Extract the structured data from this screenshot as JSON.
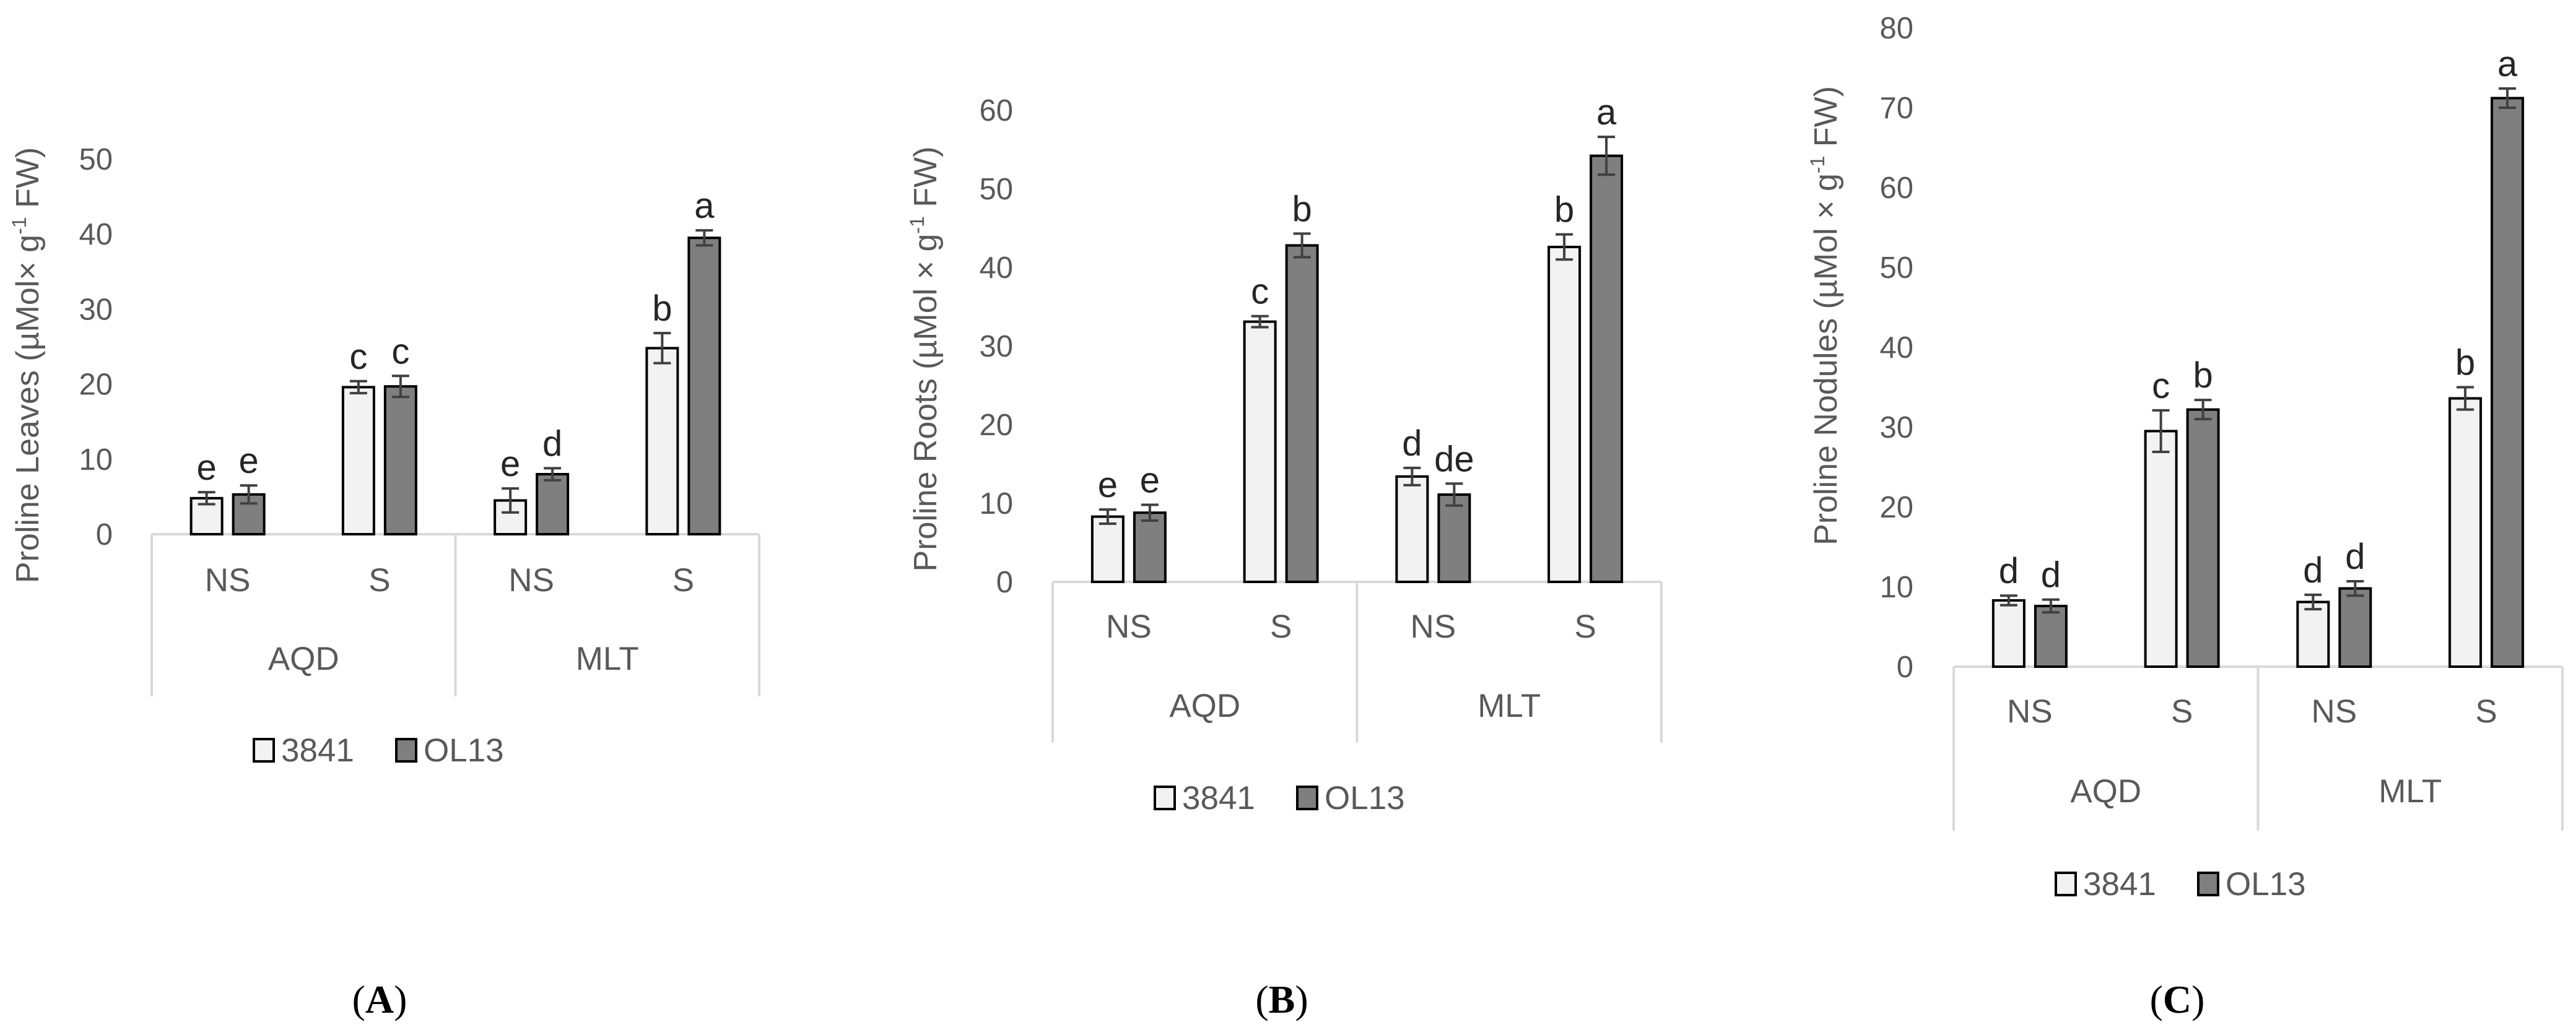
{
  "chart_data": [
    {
      "type": "bar",
      "panel_label": "A",
      "ylabel": {
        "prefix": "Proline  Leaves (µMol× g",
        "sup": "-1",
        "suffix": " FW)"
      },
      "yticks": [
        "0",
        "10",
        "20",
        "30",
        "40",
        "50"
      ],
      "ylim": [
        0,
        50
      ],
      "groups": [
        "AQD",
        "MLT"
      ],
      "categories": [
        "NS",
        "S",
        "NS",
        "S"
      ],
      "series": [
        {
          "name": "3841",
          "values": [
            4.8,
            19.6,
            4.5,
            24.8
          ],
          "errors": [
            0.8,
            0.8,
            1.6,
            2.0
          ],
          "letters": [
            "e",
            "c",
            "e",
            "b"
          ]
        },
        {
          "name": "OL13",
          "values": [
            5.3,
            19.7,
            8.0,
            39.5
          ],
          "errors": [
            1.2,
            1.4,
            0.8,
            1.0
          ],
          "letters": [
            "e",
            "c",
            "d",
            "a"
          ]
        }
      ],
      "legend_position": "bottom",
      "colors": {
        "3841": "#f2f2f2",
        "OL13": "#7f7f7f"
      }
    },
    {
      "type": "bar",
      "panel_label": "B",
      "ylabel": {
        "prefix": "Proline Roots (µMol × g",
        "sup": "-1",
        "suffix": " FW)"
      },
      "yticks": [
        "0",
        "10",
        "20",
        "30",
        "40",
        "50",
        "60"
      ],
      "ylim": [
        0,
        60
      ],
      "groups": [
        "AQD",
        "MLT"
      ],
      "categories": [
        "NS",
        "S",
        "NS",
        "S"
      ],
      "series": [
        {
          "name": "3841",
          "values": [
            8.3,
            33.1,
            13.4,
            42.6
          ],
          "errors": [
            0.9,
            0.7,
            1.1,
            1.6
          ],
          "letters": [
            "e",
            "c",
            "d",
            "b"
          ]
        },
        {
          "name": "OL13",
          "values": [
            8.8,
            42.8,
            11.1,
            54.2
          ],
          "errors": [
            1.0,
            1.5,
            1.4,
            2.4
          ],
          "letters": [
            "e",
            "b",
            "de",
            "a"
          ]
        }
      ],
      "legend_position": "bottom",
      "colors": {
        "3841": "#f2f2f2",
        "OL13": "#7f7f7f"
      }
    },
    {
      "type": "bar",
      "panel_label": "C",
      "ylabel": {
        "prefix": "Proline Nodules (µMol × g",
        "sup": "-1",
        "suffix": " FW)"
      },
      "yticks": [
        "0",
        "10",
        "20",
        "30",
        "40",
        "50",
        "60",
        "70",
        "80"
      ],
      "ylim": [
        0,
        80
      ],
      "groups": [
        "AQD",
        "MLT"
      ],
      "categories": [
        "NS",
        "S",
        "NS",
        "S"
      ],
      "series": [
        {
          "name": "3841",
          "values": [
            8.3,
            29.5,
            8.1,
            33.6
          ],
          "errors": [
            0.6,
            2.6,
            0.9,
            1.4
          ],
          "letters": [
            "d",
            "c",
            "d",
            "b"
          ]
        },
        {
          "name": "OL13",
          "values": [
            7.6,
            32.2,
            9.8,
            71.2
          ],
          "errors": [
            0.8,
            1.2,
            0.9,
            1.2
          ],
          "letters": [
            "d",
            "b",
            "d",
            "a"
          ]
        }
      ],
      "legend_position": "bottom",
      "colors": {
        "3841": "#f2f2f2",
        "OL13": "#7f7f7f"
      }
    }
  ]
}
